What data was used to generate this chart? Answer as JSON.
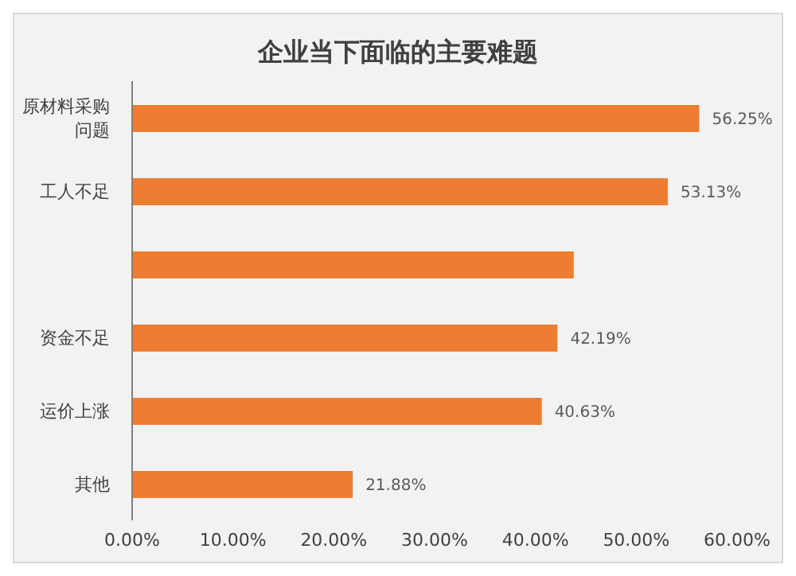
{
  "chart_data": {
    "type": "bar",
    "orientation": "horizontal",
    "title": "企业当下面临的主要难题",
    "categories": [
      "原材料采购问题",
      "工人不足",
      null,
      "资金不足",
      "运价上涨",
      "其他"
    ],
    "values": [
      56.25,
      53.13,
      43.8,
      42.19,
      40.63,
      21.88
    ],
    "value_labels": [
      "56.25%",
      "53.13%",
      null,
      "42.19%",
      "40.63%",
      "21.88%"
    ],
    "color": "#ed7d31",
    "xlim": [
      0,
      60
    ],
    "xticks": [
      {
        "value": 0,
        "label": "0.00%"
      },
      {
        "value": 10,
        "label": "10.00%"
      },
      {
        "value": 20,
        "label": "20.00%"
      },
      {
        "value": 30,
        "label": "30.00%"
      },
      {
        "value": 40,
        "label": "40.00%"
      },
      {
        "value": 50,
        "label": "50.00%"
      },
      {
        "value": 60,
        "label": "60.00%"
      }
    ],
    "grid": false,
    "legend": false
  }
}
